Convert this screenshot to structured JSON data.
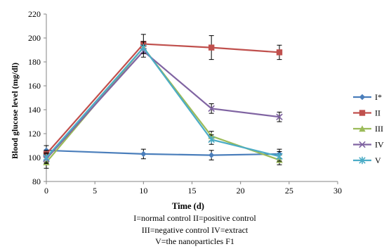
{
  "chart_data": {
    "type": "line",
    "xlabel": "Time (d)",
    "ylabel": "Blood glucose level (mg/dl)",
    "xlim": [
      0,
      30
    ],
    "ylim": [
      80,
      220
    ],
    "x_ticks": [
      "0",
      "5",
      "10",
      "15",
      "20",
      "25",
      "30"
    ],
    "y_ticks": [
      "80",
      "100",
      "120",
      "140",
      "160",
      "180",
      "200",
      "220"
    ],
    "grid": false,
    "legend_position": "right (clipped)",
    "x": [
      0,
      10,
      17,
      24
    ],
    "series": [
      {
        "name": "I*",
        "color": "#4A7EBB",
        "marker": "diamond",
        "values": [
          106,
          103,
          102,
          103
        ],
        "errors": [
          4,
          4,
          4,
          4
        ]
      },
      {
        "name": "II",
        "color": "#C0504D",
        "marker": "square",
        "values": [
          103,
          195,
          192,
          188
        ],
        "errors": [
          3,
          8,
          10,
          6
        ]
      },
      {
        "name": "III",
        "color": "#9BBB59",
        "marker": "triangle",
        "values": [
          96,
          192,
          118,
          98
        ],
        "errors": [
          5,
          5,
          4,
          4
        ]
      },
      {
        "name": "IV",
        "color": "#8064A2",
        "marker": "x",
        "values": [
          99,
          189,
          141,
          134
        ],
        "errors": [
          4,
          5,
          4,
          4
        ]
      },
      {
        "name": "V",
        "color": "#4BACC6",
        "marker": "star",
        "values": [
          100,
          192,
          115,
          101
        ],
        "errors": [
          4,
          5,
          4,
          4
        ]
      }
    ],
    "legend_labels": [
      "I*",
      "II",
      "III",
      "IV",
      "V"
    ]
  },
  "caption": {
    "line1": "I=normal control   II=positive control",
    "line2": "III=negative  control  IV=extract",
    "line3": "V=the nanoparticles F1"
  }
}
